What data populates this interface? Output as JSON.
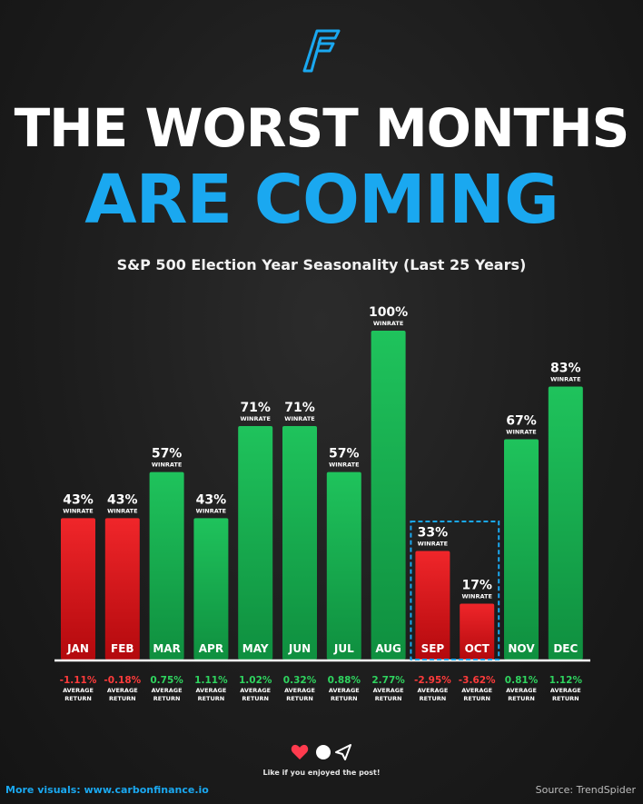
{
  "header": {
    "title_line1": "THE WORST MONTHS",
    "title_line2": "ARE COMING",
    "subtitle": "S&P 500 Election Year Seasonality (Last 25 Years)"
  },
  "footer": {
    "like_text": "Like if you enjoyed the post!",
    "left_text": "More visuals: www.carbonfinance.io",
    "right_text": "Source: TrendSpider"
  },
  "colors": {
    "accent": "#1aa8f0",
    "positive": "#13a84d",
    "negative": "#e0181c",
    "positive_text": "#2fd45f",
    "negative_text": "#ff3b3b"
  },
  "chart_data": {
    "type": "bar",
    "title": "S&P 500 Election Year Seasonality (Last 25 Years)",
    "categories": [
      "JAN",
      "FEB",
      "MAR",
      "APR",
      "MAY",
      "JUN",
      "JUL",
      "AUG",
      "SEP",
      "OCT",
      "NOV",
      "DEC"
    ],
    "series": [
      {
        "name": "WINRATE",
        "values": [
          43,
          43,
          57,
          43,
          71,
          71,
          57,
          100,
          33,
          17,
          67,
          83
        ],
        "labels": [
          "43%",
          "43%",
          "57%",
          "43%",
          "71%",
          "71%",
          "57%",
          "100%",
          "33%",
          "17%",
          "67%",
          "83%"
        ]
      },
      {
        "name": "AVERAGE RETURN",
        "values": [
          -1.11,
          -0.18,
          0.75,
          1.11,
          1.02,
          0.32,
          0.88,
          2.77,
          -2.95,
          -3.62,
          0.81,
          1.12
        ],
        "labels": [
          "-1.11%",
          "-0.18%",
          "0.75%",
          "1.11%",
          "1.02%",
          "0.32%",
          "0.88%",
          "2.77%",
          "-2.95%",
          "-3.62%",
          "0.81%",
          "1.12%"
        ]
      }
    ],
    "bar_sublabel": "WINRATE",
    "return_sublabel_1": "AVERAGE",
    "return_sublabel_2": "RETURN",
    "ylim": [
      0,
      100
    ],
    "highlight": [
      "SEP",
      "OCT"
    ]
  }
}
